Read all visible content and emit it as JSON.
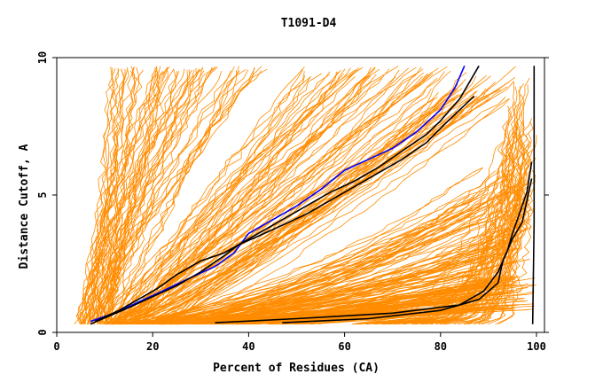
{
  "chart_data": {
    "type": "line",
    "title": "T1091-D4",
    "xlabel": "Percent of Residues (CA)",
    "ylabel": "Distance Cutoff, A",
    "xlim": [
      0,
      100
    ],
    "ylim": [
      0,
      10
    ],
    "x_ticks": [
      0,
      20,
      40,
      60,
      80,
      100
    ],
    "x_tick_labels": [
      "0",
      "20",
      "40",
      "60",
      "80",
      "100"
    ],
    "y_ticks": [
      0,
      5,
      10
    ],
    "y_tick_labels": [
      "0",
      "5",
      "10"
    ],
    "grid": false,
    "legend": "none",
    "colors": {
      "models": "#ff8c00",
      "highlight": "#0000ff",
      "reference": "#000000"
    },
    "highlight_series": [
      {
        "name": "blue-curve",
        "color": "#0000ff",
        "x": [
          7,
          12,
          17,
          22,
          28,
          33,
          37,
          40,
          45,
          50,
          55,
          60,
          65,
          70,
          75,
          80,
          83,
          85
        ],
        "y": [
          0.4,
          0.7,
          1.1,
          1.5,
          2.0,
          2.4,
          2.9,
          3.6,
          4.1,
          4.6,
          5.2,
          5.9,
          6.3,
          6.7,
          7.3,
          8.1,
          8.9,
          9.7
        ]
      },
      {
        "name": "black-curve-a",
        "color": "#000000",
        "x": [
          8,
          13,
          18,
          21,
          25,
          30,
          35,
          38,
          42,
          47,
          52,
          57,
          62,
          67,
          72,
          77,
          80,
          84,
          88
        ],
        "y": [
          0.4,
          0.8,
          1.3,
          1.6,
          2.1,
          2.6,
          2.9,
          3.2,
          3.6,
          4.1,
          4.6,
          5.1,
          5.5,
          6.0,
          6.6,
          7.2,
          7.7,
          8.5,
          9.7
        ]
      },
      {
        "name": "black-curve-b",
        "color": "#000000",
        "x": [
          7,
          11,
          15,
          20,
          25,
          30,
          35,
          38,
          42,
          47,
          52,
          57,
          62,
          67,
          72,
          77,
          81,
          87
        ],
        "y": [
          0.3,
          0.6,
          0.9,
          1.3,
          1.7,
          2.2,
          2.8,
          3.2,
          3.5,
          3.9,
          4.3,
          4.8,
          5.3,
          5.8,
          6.3,
          6.9,
          7.6,
          8.6
        ]
      },
      {
        "name": "black-curve-c",
        "color": "#000000",
        "x": [
          33,
          50,
          70,
          84,
          89,
          92,
          94,
          95,
          96,
          97,
          98,
          99
        ],
        "y": [
          0.35,
          0.5,
          0.7,
          1.0,
          1.5,
          2.2,
          3.0,
          3.6,
          4.1,
          4.6,
          5.1,
          6.2
        ]
      },
      {
        "name": "black-curve-d",
        "color": "#000000",
        "x": [
          47,
          65,
          80,
          88,
          92,
          93,
          95,
          97,
          98,
          99
        ],
        "y": [
          0.35,
          0.5,
          0.8,
          1.2,
          1.8,
          2.6,
          3.4,
          4.0,
          4.8,
          5.6
        ]
      },
      {
        "name": "black-vertical",
        "color": "#000000",
        "x": [
          99.2,
          99.5,
          99.5,
          99.5
        ],
        "y": [
          0.3,
          4.0,
          7.0,
          9.7
        ]
      }
    ],
    "model_families": [
      {
        "name": "steep-left",
        "count": 60,
        "x_start": [
          4,
          12
        ],
        "x_end": [
          11,
          45
        ],
        "y_max": [
          9.5,
          9.7
        ],
        "shape": 0.85
      },
      {
        "name": "mid-curves",
        "count": 45,
        "x_start": [
          8,
          18
        ],
        "x_end": [
          50,
          80
        ],
        "y_max": [
          9.3,
          9.7
        ],
        "shape": 1.0
      },
      {
        "name": "diagonal",
        "count": 40,
        "x_start": [
          10,
          25
        ],
        "x_end": [
          78,
          99
        ],
        "y_max": [
          8.5,
          9.7
        ],
        "shape": 1.15
      },
      {
        "name": "lower-fan",
        "count": 70,
        "x_start": [
          10,
          25
        ],
        "x_end": [
          85,
          100
        ],
        "y_max": [
          2.5,
          6.0
        ],
        "shape": 1.6
      },
      {
        "name": "bottom-flat",
        "count": 90,
        "x_start": [
          20,
          55
        ],
        "x_end": [
          85,
          100
        ],
        "y_max": [
          0.8,
          2.2
        ],
        "shape": 1.2
      },
      {
        "name": "right-steep",
        "count": 55,
        "x_start": [
          60,
          93
        ],
        "x_end": [
          94,
          100
        ],
        "y_max": [
          4.0,
          9.7
        ],
        "shape": 3.0
      }
    ]
  }
}
